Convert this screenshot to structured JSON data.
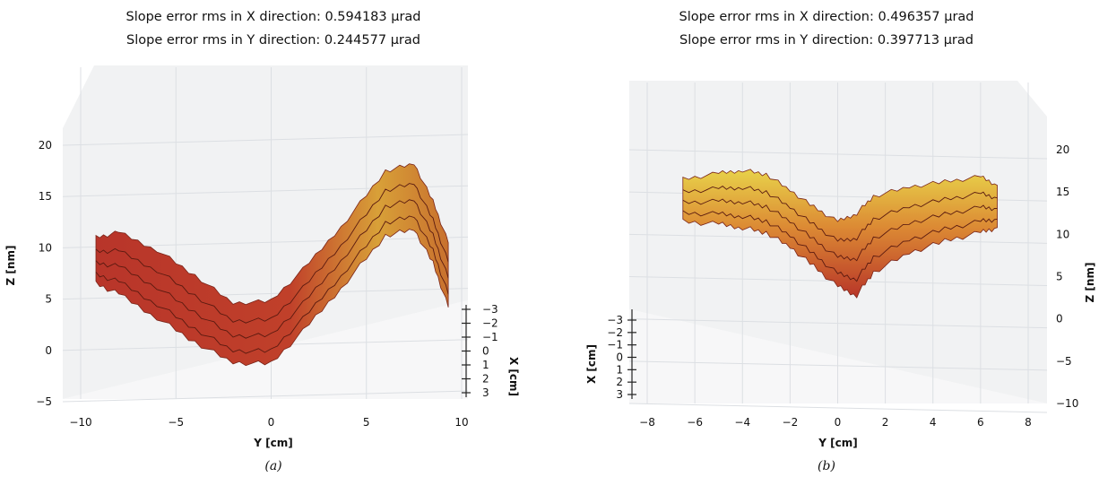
{
  "chart_data": [
    {
      "type": "surface3d",
      "caption": "(a)",
      "title_lines": [
        "Slope error rms in X direction: 0.594183 μrad",
        "Slope error rms in Y direction: 0.244577 μrad"
      ],
      "xlabel": "Y [cm]",
      "ylabel": "Z [nm]",
      "depthlabel": "X [cm]",
      "xlim": [
        -10,
        10
      ],
      "ylim": [
        -5,
        20
      ],
      "x_ticks": [
        "−10",
        "−5",
        "0",
        "5",
        "10"
      ],
      "z_ticks": [
        "−5",
        "0",
        "5",
        "10",
        "15",
        "20"
      ],
      "depth_ticks": [
        "−3",
        "−2",
        "−1",
        "0",
        "1",
        "2",
        "3"
      ],
      "profile": {
        "y": [
          -9.2,
          -8,
          -6,
          -4,
          -2,
          0,
          2,
          4,
          6,
          7.5,
          8.5,
          9.3
        ],
        "top": [
          11,
          11.5,
          9.8,
          7.3,
          4.6,
          4.8,
          8.5,
          12.8,
          17.5,
          18.2,
          14.5,
          10.5
        ],
        "bottom": [
          6.5,
          5.5,
          3.2,
          0.8,
          -1.2,
          -1.3,
          2.5,
          6.8,
          11.2,
          11.8,
          8.5,
          4.2
        ]
      }
    },
    {
      "type": "surface3d",
      "caption": "(b)",
      "title_lines": [
        "Slope error rms in X direction: 0.496357 μrad",
        "Slope error rms in Y direction: 0.397713 μrad"
      ],
      "xlabel": "Y [cm]",
      "ylabel": "Z [nm]",
      "depthlabel": "X [cm]",
      "xlim": [
        -8,
        8
      ],
      "ylim": [
        -10,
        20
      ],
      "x_ticks": [
        "−8",
        "−6",
        "−4",
        "−2",
        "0",
        "2",
        "4",
        "6",
        "8"
      ],
      "z_ticks": [
        "−10",
        "−5",
        "0",
        "5",
        "10",
        "15",
        "20"
      ],
      "depth_ticks": [
        "−3",
        "−2",
        "−1",
        "0",
        "1",
        "2",
        "3"
      ],
      "profile": {
        "y": [
          -6.5,
          -5,
          -4,
          -3,
          -2,
          -1,
          0,
          0.8,
          1.5,
          3,
          4.5,
          6,
          6.7
        ],
        "top": [
          16.5,
          17.2,
          17.6,
          17.1,
          15.2,
          13.2,
          11.5,
          12.5,
          14.5,
          15.6,
          16.2,
          16.8,
          15.8
        ],
        "bottom": [
          11.5,
          11.2,
          10.8,
          10.2,
          8.5,
          6.2,
          3.8,
          2.8,
          5.5,
          7.8,
          9.2,
          10.2,
          10.8
        ]
      }
    }
  ]
}
